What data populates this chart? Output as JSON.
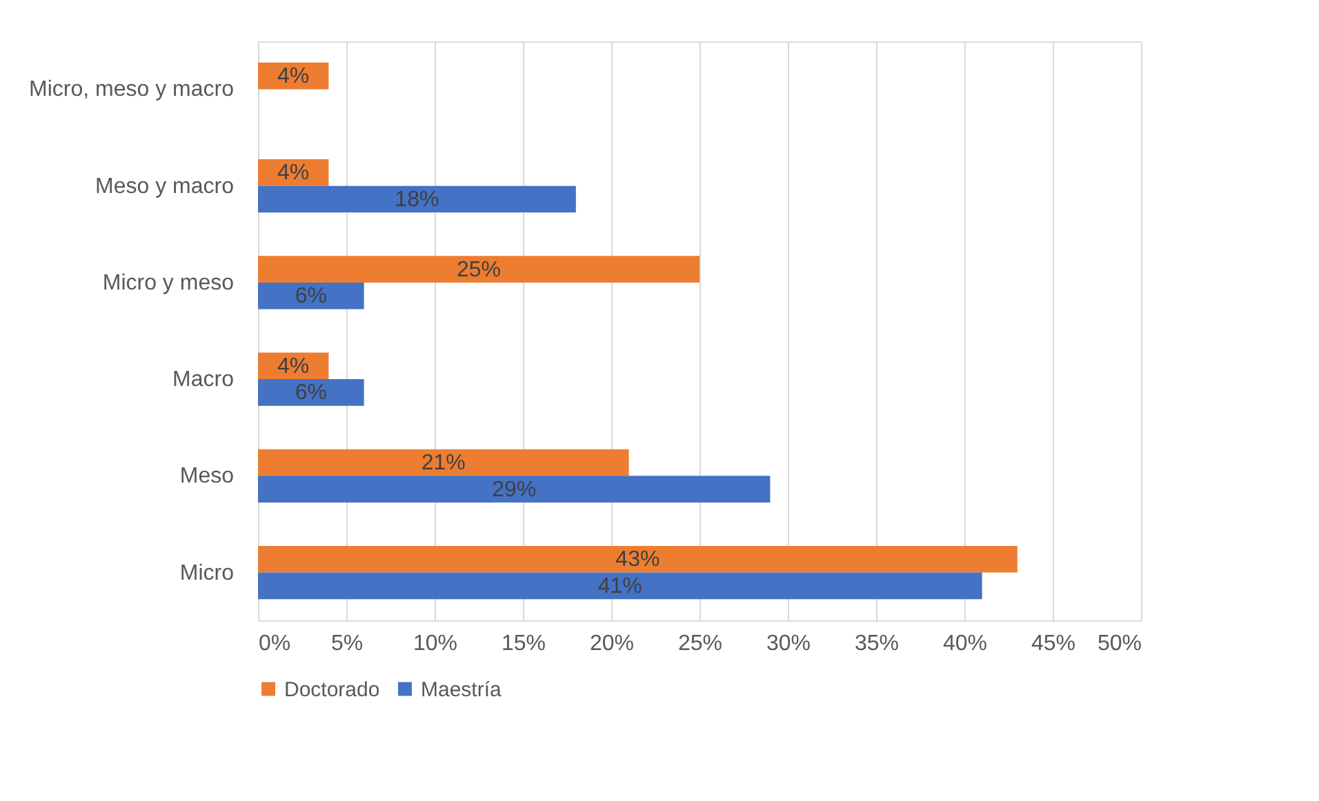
{
  "chart_data": {
    "type": "bar",
    "orientation": "horizontal",
    "categories": [
      "Micro, meso y macro",
      "Meso y macro",
      "Micro y meso",
      "Macro",
      "Meso",
      "Micro"
    ],
    "series": [
      {
        "name": "Doctorado",
        "color": "#ed7d31",
        "values": [
          4,
          4,
          25,
          4,
          21,
          43
        ],
        "value_labels": [
          "4%",
          "4%",
          "25%",
          "4%",
          "21%",
          "43%"
        ]
      },
      {
        "name": "Maestría",
        "color": "#4472c4",
        "values": [
          null,
          18,
          6,
          6,
          29,
          41
        ],
        "value_labels": [
          null,
          "18%",
          "6%",
          "6%",
          "29%",
          "41%"
        ]
      }
    ],
    "xlim": [
      0,
      50
    ],
    "xticks": [
      {
        "value": 0,
        "label": "0%"
      },
      {
        "value": 5,
        "label": "5%"
      },
      {
        "value": 10,
        "label": "10%"
      },
      {
        "value": 15,
        "label": "15%"
      },
      {
        "value": 20,
        "label": "20%"
      },
      {
        "value": 25,
        "label": "25%"
      },
      {
        "value": 30,
        "label": "30%"
      },
      {
        "value": 35,
        "label": "35%"
      },
      {
        "value": 40,
        "label": "40%"
      },
      {
        "value": 45,
        "label": "45%"
      },
      {
        "value": 50,
        "label": "50%"
      }
    ],
    "grid": "x",
    "legend": "bottom"
  }
}
